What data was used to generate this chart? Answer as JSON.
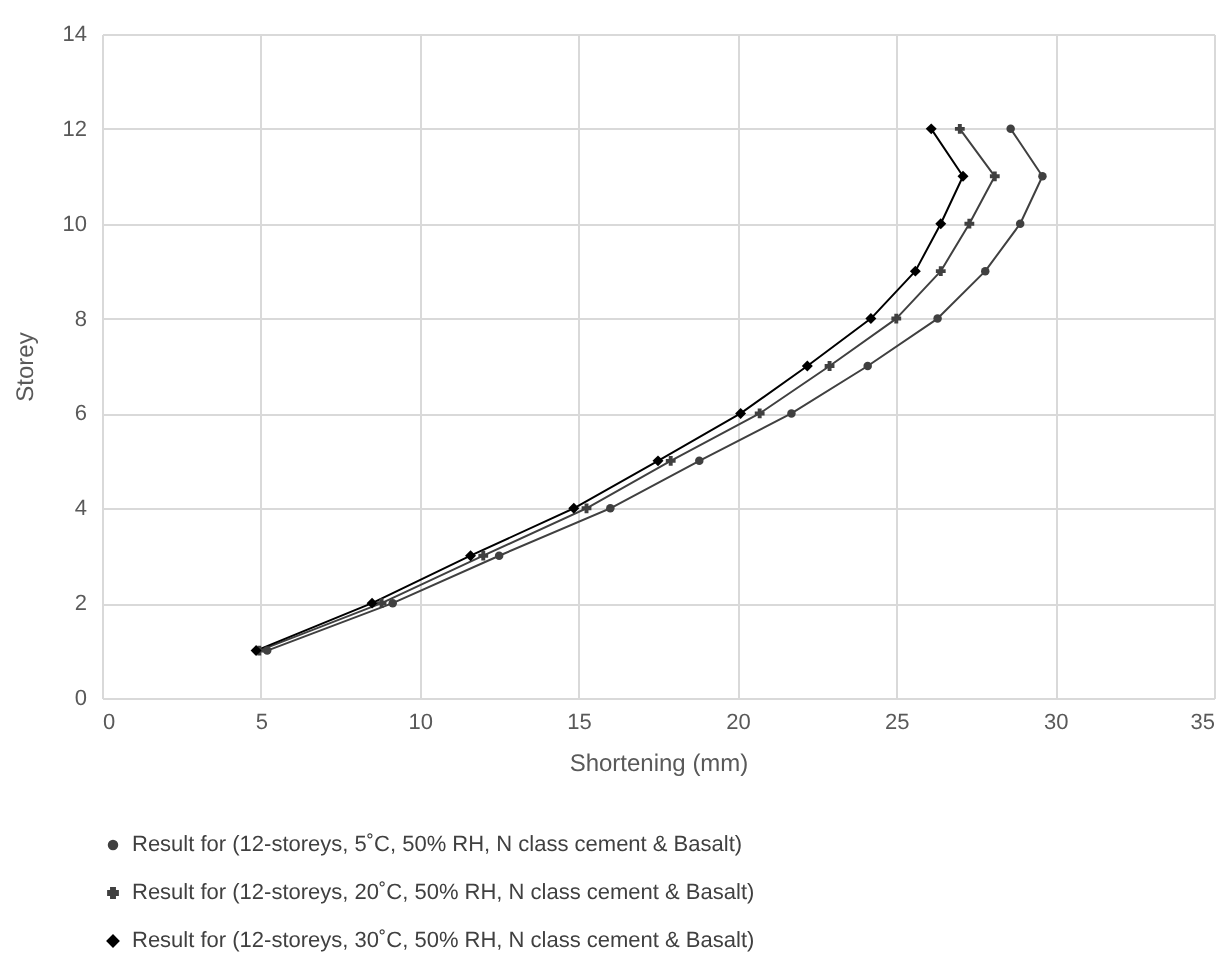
{
  "chart_data": {
    "type": "line",
    "xlabel": "Shortening (mm)",
    "ylabel": "Storey",
    "xlim": [
      0,
      35
    ],
    "xticks": [
      0,
      5,
      10,
      15,
      20,
      25,
      30,
      35
    ],
    "ylim": [
      0,
      14
    ],
    "yticks": [
      0,
      2,
      4,
      6,
      8,
      10,
      12,
      14
    ],
    "grid": true,
    "legend": "bottom",
    "line_style": "solid",
    "series": [
      {
        "name": "Result for (12-storeys, 5˚C, 50% RH, N class cement & Basalt)",
        "color": "#404040",
        "marker": "circle",
        "x": [
          5.2,
          9.15,
          12.5,
          16.0,
          18.8,
          21.7,
          24.1,
          26.3,
          27.8,
          28.9,
          29.6,
          28.6
        ],
        "values": [
          1,
          2,
          3,
          4,
          5,
          6,
          7,
          8,
          9,
          10,
          11,
          12
        ]
      },
      {
        "name": "Result for (12-storeys, 20˚C, 50% RH, N class cement & Basalt)",
        "color": "#404040",
        "marker": "cross",
        "x": [
          4.95,
          8.8,
          12.0,
          15.25,
          17.9,
          20.7,
          22.9,
          25.0,
          26.4,
          27.3,
          28.1,
          27.0
        ],
        "values": [
          1,
          2,
          3,
          4,
          5,
          6,
          7,
          8,
          9,
          10,
          11,
          12
        ]
      },
      {
        "name": "Result for (12-storeys, 30˚C, 50% RH, N class cement & Basalt)",
        "color": "#000000",
        "marker": "diamond",
        "x": [
          4.85,
          8.5,
          11.6,
          14.85,
          17.5,
          20.1,
          22.2,
          24.2,
          25.6,
          26.4,
          27.1,
          26.1
        ],
        "values": [
          1,
          2,
          3,
          4,
          5,
          6,
          7,
          8,
          9,
          10,
          11,
          12
        ]
      }
    ]
  }
}
